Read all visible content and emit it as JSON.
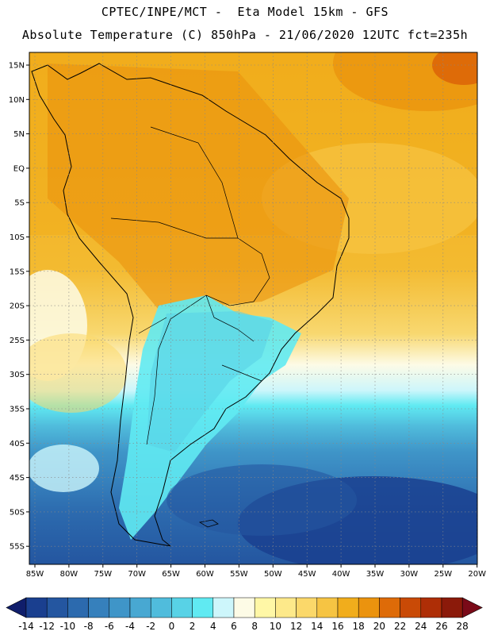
{
  "header": {
    "line1": "CPTEC/INPE/MCT -  Eta Model 15km - GFS",
    "line2": "Absolute Temperature (C) 850hPa - 21/06/2020 12UTC fct=235h"
  },
  "map": {
    "region": "South America",
    "lat_ticks": [
      "15N",
      "10N",
      "5N",
      "EQ",
      "5S",
      "10S",
      "15S",
      "20S",
      "25S",
      "30S",
      "35S",
      "40S",
      "45S",
      "50S",
      "55S"
    ],
    "lon_ticks": [
      "85W",
      "80W",
      "75W",
      "70W",
      "65W",
      "60W",
      "55W",
      "50W",
      "45W",
      "40W",
      "35W",
      "30W",
      "25W",
      "20W"
    ]
  },
  "colorbar": {
    "labels": [
      "-14",
      "-12",
      "-10",
      "-8",
      "-6",
      "-4",
      "-2",
      "0",
      "2",
      "4",
      "6",
      "8",
      "10",
      "12",
      "14",
      "16",
      "18",
      "20",
      "22",
      "24",
      "26",
      "28"
    ],
    "colors": [
      "#1a3f8f",
      "#2456a0",
      "#2c6aae",
      "#3680bc",
      "#3f95c8",
      "#48a8d2",
      "#50bcdc",
      "#58d2e6",
      "#60eaf2",
      "#cdf6fb",
      "#fdfbe6",
      "#fff7a6",
      "#fde98a",
      "#fbd86a",
      "#f6c443",
      "#f1ad1c",
      "#eb930e",
      "#de6b08",
      "#c94a06",
      "#ae2e06",
      "#8b1a0a"
    ],
    "low_arrow_color": "#101e6b",
    "high_arrow_color": "#7a0a18"
  }
}
